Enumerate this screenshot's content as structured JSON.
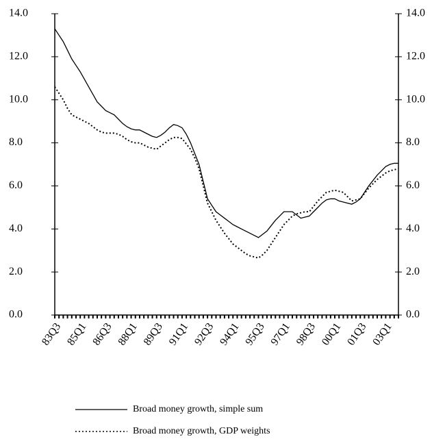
{
  "chart_data": {
    "type": "line",
    "categories": [
      "83Q3",
      null,
      null,
      null,
      null,
      null,
      "85Q1",
      null,
      null,
      null,
      null,
      null,
      "86Q3",
      null,
      null,
      null,
      null,
      null,
      "88Q1",
      null,
      null,
      null,
      null,
      null,
      "89Q3",
      null,
      null,
      null,
      null,
      null,
      "91Q1",
      null,
      null,
      null,
      null,
      null,
      "92Q3",
      null,
      null,
      null,
      null,
      null,
      "94Q1",
      null,
      null,
      null,
      null,
      null,
      "95Q3",
      null,
      null,
      null,
      null,
      null,
      "97Q1",
      null,
      null,
      null,
      null,
      null,
      "98Q3",
      null,
      null,
      null,
      null,
      null,
      "00Q1",
      null,
      null,
      null,
      null,
      null,
      "01Q3",
      null,
      null,
      null,
      null,
      null,
      "03Q1",
      null,
      null,
      null
    ],
    "series": [
      {
        "name": "Broad money growth, simple sum",
        "color": "#000000",
        "style": "solid",
        "values": [
          13.3,
          13.0,
          12.7,
          12.3,
          11.9,
          11.6,
          11.3,
          10.95,
          10.6,
          10.25,
          9.9,
          9.7,
          9.5,
          9.4,
          9.3,
          9.1,
          8.9,
          8.75,
          8.65,
          8.6,
          8.6,
          8.5,
          8.4,
          8.3,
          8.25,
          8.35,
          8.5,
          8.7,
          8.85,
          8.8,
          8.7,
          8.4,
          8.0,
          7.5,
          7.0,
          6.2,
          5.4,
          5.1,
          4.8,
          4.65,
          4.5,
          4.35,
          4.2,
          4.1,
          4.0,
          3.9,
          3.8,
          3.7,
          3.6,
          3.75,
          3.9,
          4.15,
          4.4,
          4.6,
          4.8,
          4.8,
          4.8,
          4.65,
          4.5,
          4.55,
          4.6,
          4.8,
          5.0,
          5.2,
          5.35,
          5.4,
          5.4,
          5.3,
          5.25,
          5.2,
          5.15,
          5.25,
          5.4,
          5.7,
          6.0,
          6.25,
          6.5,
          6.7,
          6.9,
          7.0,
          7.05,
          7.05
        ]
      },
      {
        "name": "Broad money growth, GDP weights",
        "color": "#000000",
        "style": "dotted",
        "values": [
          10.6,
          10.3,
          10.0,
          9.6,
          9.3,
          9.2,
          9.1,
          9.0,
          8.9,
          8.75,
          8.6,
          8.5,
          8.45,
          8.45,
          8.45,
          8.4,
          8.3,
          8.15,
          8.05,
          8.0,
          8.0,
          7.9,
          7.8,
          7.75,
          7.7,
          7.85,
          8.0,
          8.15,
          8.25,
          8.25,
          8.2,
          7.95,
          7.7,
          7.3,
          6.8,
          6.0,
          5.2,
          4.8,
          4.4,
          4.1,
          3.8,
          3.55,
          3.3,
          3.15,
          3.0,
          2.85,
          2.75,
          2.7,
          2.65,
          2.8,
          3.0,
          3.3,
          3.6,
          3.9,
          4.2,
          4.4,
          4.6,
          4.7,
          4.75,
          4.8,
          4.8,
          5.05,
          5.3,
          5.5,
          5.7,
          5.75,
          5.8,
          5.75,
          5.7,
          5.5,
          5.3,
          5.35,
          5.4,
          5.65,
          5.9,
          6.1,
          6.3,
          6.45,
          6.6,
          6.7,
          6.75,
          6.8
        ]
      }
    ],
    "ylim": [
      0,
      14
    ],
    "yticks": [
      {
        "value": 0,
        "label": "0.0"
      },
      {
        "value": 2,
        "label": "2.0"
      },
      {
        "value": 4,
        "label": "4.0"
      },
      {
        "value": 6,
        "label": "6.0"
      },
      {
        "value": 8,
        "label": "8.0"
      },
      {
        "value": 10,
        "label": "10.0"
      },
      {
        "value": 12,
        "label": "12.0"
      },
      {
        "value": 14,
        "label": "14.0"
      }
    ],
    "y2lim": [
      0,
      14
    ],
    "y2ticks": [
      {
        "value": 0,
        "label": "0.0"
      },
      {
        "value": 2,
        "label": "2.0"
      },
      {
        "value": 4,
        "label": "4.0"
      },
      {
        "value": 6,
        "label": "6.0"
      },
      {
        "value": 8,
        "label": "8.0"
      },
      {
        "value": 10,
        "label": "10.0"
      },
      {
        "value": 12,
        "label": "12.0"
      },
      {
        "value": 14,
        "label": "14.0"
      }
    ],
    "grid": false
  }
}
